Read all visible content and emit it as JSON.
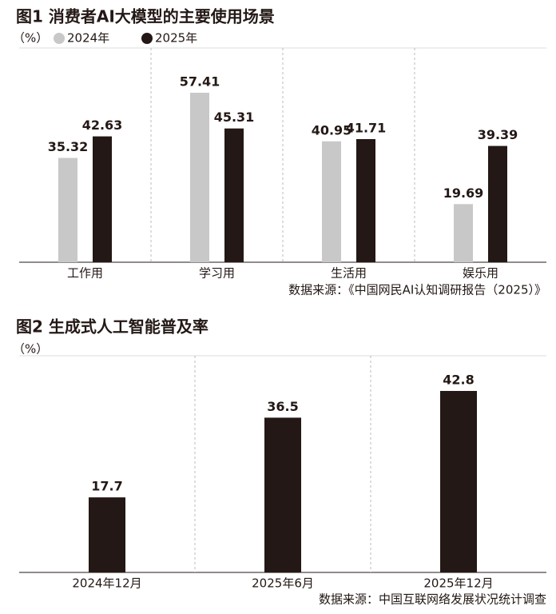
{
  "chart_data": [
    {
      "type": "bar",
      "title": "图1 消费者AI大模型的主要使用场景",
      "unit": "（%）",
      "categories": [
        "工作用",
        "学习用",
        "生活用",
        "娱乐用"
      ],
      "series": [
        {
          "name": "2024年",
          "color": "#c8c8c8",
          "values": [
            35.32,
            57.41,
            40.95,
            19.69
          ]
        },
        {
          "name": "2025年",
          "color": "#231815",
          "values": [
            42.63,
            45.31,
            41.71,
            39.39
          ]
        }
      ],
      "source": "数据来源：《中国网民AI认知调研报告（2025）》"
    },
    {
      "type": "bar",
      "title": "图2 生成式人工智能普及率",
      "unit": "（%）",
      "categories": [
        "2024年12月",
        "2025年6月",
        "2025年12月"
      ],
      "values": [
        17.7,
        36.5,
        42.8
      ],
      "color": "#231815",
      "source": "数据来源：中国互联网络发展状况统计调查"
    }
  ]
}
